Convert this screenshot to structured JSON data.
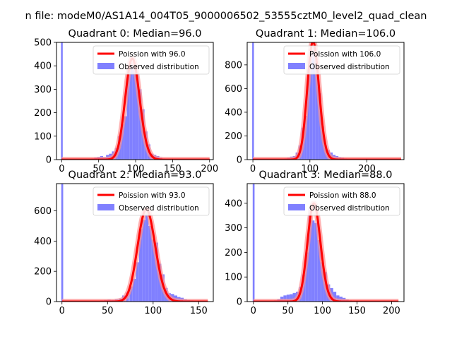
{
  "figure": {
    "suptitle": "n file: modeM0/AS1A14_004T05_9000006502_53555cztM0_level2_quad_clean"
  },
  "colors": {
    "hist": "#8080ff",
    "poisson": "#ff0000",
    "poisson_glow": "#ff9090",
    "axes": "#000000",
    "background": "#ffffff"
  },
  "legend_labels": {
    "observed": "Observed distribution"
  },
  "chart_data": [
    {
      "type": "bar",
      "title": "Quadrant 0: Median=96.0",
      "legend": {
        "poisson": "Poission with 96.0",
        "observed": "Observed distribution",
        "placement": "top-right"
      },
      "median": 96.0,
      "xlim": [
        -7,
        205
      ],
      "ylim": [
        0,
        500
      ],
      "xticks": [
        0,
        50,
        100,
        150,
        200
      ],
      "yticks": [
        0,
        100,
        200,
        300,
        400,
        500
      ],
      "hist": {
        "bin_width": 4,
        "zero_bin_value": 500,
        "bins": [
          [
            40,
            5
          ],
          [
            44,
            8
          ],
          [
            48,
            12
          ],
          [
            52,
            15
          ],
          [
            56,
            10
          ],
          [
            60,
            20
          ],
          [
            64,
            25
          ],
          [
            68,
            35
          ],
          [
            72,
            50
          ],
          [
            76,
            100
          ],
          [
            80,
            150
          ],
          [
            84,
            185
          ],
          [
            88,
            390
          ],
          [
            92,
            410
          ],
          [
            96,
            400
          ],
          [
            100,
            370
          ],
          [
            104,
            300
          ],
          [
            108,
            215
          ],
          [
            112,
            120
          ],
          [
            116,
            65
          ],
          [
            120,
            25
          ],
          [
            124,
            20
          ],
          [
            128,
            15
          ],
          [
            132,
            8
          ],
          [
            136,
            5
          ],
          [
            140,
            4
          ],
          [
            144,
            3
          ],
          [
            148,
            2
          ]
        ]
      },
      "poisson_x_range": [
        0,
        200
      ]
    },
    {
      "type": "bar",
      "title": "Quadrant 1: Median=106.0",
      "legend": {
        "poisson": "Poission with 106.0",
        "observed": "Observed distribution",
        "placement": "top-right"
      },
      "median": 106.0,
      "xlim": [
        -10,
        265
      ],
      "ylim": [
        0,
        990
      ],
      "xticks": [
        0,
        100,
        200
      ],
      "yticks": [
        0,
        200,
        400,
        600,
        800
      ],
      "hist": {
        "bin_width": 5,
        "zero_bin_value": 990,
        "bins": [
          [
            45,
            5
          ],
          [
            50,
            8
          ],
          [
            55,
            10
          ],
          [
            60,
            15
          ],
          [
            65,
            25
          ],
          [
            70,
            30
          ],
          [
            75,
            60
          ],
          [
            80,
            120
          ],
          [
            85,
            270
          ],
          [
            90,
            370
          ],
          [
            95,
            760
          ],
          [
            100,
            900
          ],
          [
            105,
            950
          ],
          [
            110,
            820
          ],
          [
            115,
            560
          ],
          [
            120,
            280
          ],
          [
            125,
            120
          ],
          [
            130,
            80
          ],
          [
            135,
            60
          ],
          [
            140,
            40
          ],
          [
            145,
            30
          ],
          [
            150,
            20
          ],
          [
            155,
            15
          ],
          [
            160,
            10
          ],
          [
            165,
            8
          ],
          [
            170,
            5
          ]
        ]
      },
      "poisson_x_range": [
        0,
        260
      ]
    },
    {
      "type": "bar",
      "title": "Quadrant 2: Median=93.0",
      "legend": {
        "poisson": "Poission with 93.0",
        "observed": "Observed distribution",
        "placement": "top-right"
      },
      "median": 93.0,
      "xlim": [
        -6,
        166
      ],
      "ylim": [
        0,
        780
      ],
      "xticks": [
        0,
        50,
        100,
        150
      ],
      "yticks": [
        0,
        200,
        400,
        600
      ],
      "hist": {
        "bin_width": 3.5,
        "zero_bin_value": 780,
        "bins": [
          [
            42,
            8
          ],
          [
            46,
            10
          ],
          [
            50,
            12
          ],
          [
            54,
            10
          ],
          [
            58,
            15
          ],
          [
            62,
            20
          ],
          [
            66,
            40
          ],
          [
            70,
            60
          ],
          [
            74,
            100
          ],
          [
            77.5,
            150
          ],
          [
            81,
            260
          ],
          [
            84.5,
            480
          ],
          [
            88,
            540
          ],
          [
            91.5,
            580
          ],
          [
            95,
            500
          ],
          [
            98.5,
            410
          ],
          [
            102,
            390
          ],
          [
            105.5,
            250
          ],
          [
            109,
            180
          ],
          [
            112.5,
            90
          ],
          [
            116,
            55
          ],
          [
            119.5,
            50
          ],
          [
            123,
            40
          ],
          [
            126.5,
            30
          ],
          [
            130,
            25
          ],
          [
            133.5,
            15
          ],
          [
            137,
            10
          ],
          [
            140.5,
            8
          ],
          [
            144,
            5
          ]
        ]
      },
      "poisson_x_range": [
        0,
        160
      ]
    },
    {
      "type": "bar",
      "title": "Quadrant 3: Median=88.0",
      "legend": {
        "poisson": "Poission with 88.0",
        "observed": "Observed distribution",
        "placement": "top-right"
      },
      "median": 88.0,
      "xlim": [
        -9,
        218
      ],
      "ylim": [
        0,
        480
      ],
      "xticks": [
        0,
        50,
        100,
        150,
        200
      ],
      "yticks": [
        0,
        100,
        200,
        300,
        400
      ],
      "hist": {
        "bin_width": 4.5,
        "zero_bin_value": 480,
        "bins": [
          [
            30,
            5
          ],
          [
            34.5,
            10
          ],
          [
            39,
            20
          ],
          [
            43.5,
            25
          ],
          [
            48,
            28
          ],
          [
            52.5,
            30
          ],
          [
            57,
            35
          ],
          [
            61.5,
            40
          ],
          [
            66,
            60
          ],
          [
            70.5,
            110
          ],
          [
            75,
            200
          ],
          [
            79.5,
            380
          ],
          [
            84,
            330
          ],
          [
            88.5,
            320
          ],
          [
            93,
            250
          ],
          [
            97.5,
            160
          ],
          [
            102,
            120
          ],
          [
            106.5,
            70
          ],
          [
            111,
            55
          ],
          [
            115.5,
            40
          ],
          [
            120,
            25
          ],
          [
            124.5,
            20
          ],
          [
            129,
            15
          ],
          [
            133.5,
            8
          ],
          [
            138,
            5
          ],
          [
            142.5,
            3
          ],
          [
            147,
            3
          ]
        ]
      },
      "poisson_x_range": [
        0,
        210
      ]
    }
  ]
}
